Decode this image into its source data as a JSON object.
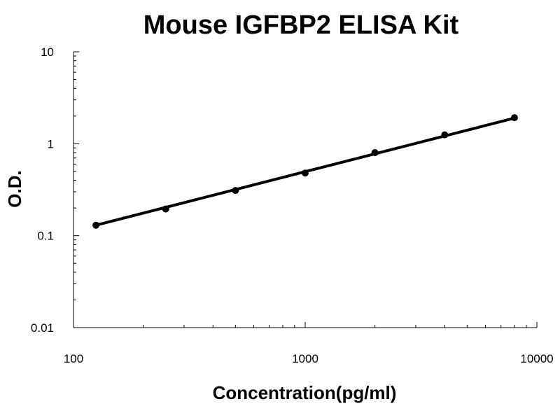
{
  "chart_data": {
    "type": "line",
    "title": "Mouse IGFBP2 ELISA Kit",
    "xlabel": "Concentration(pg/ml)",
    "ylabel": "O.D.",
    "x_scale": "log",
    "y_scale": "log",
    "xlim": [
      100,
      10000
    ],
    "ylim": [
      0.01,
      10
    ],
    "x_ticks": [
      "100",
      "1000",
      "10000"
    ],
    "y_ticks": [
      "0.01",
      "0.1",
      "1",
      "10"
    ],
    "grid": false,
    "legend": "none",
    "line_color": "#000000",
    "series": [
      {
        "x": [
          125,
          250,
          500,
          1000,
          2000,
          4000,
          8000
        ],
        "y": [
          0.13,
          0.195,
          0.31,
          0.48,
          0.8,
          1.25,
          1.92
        ]
      }
    ],
    "fit_line": {
      "x": [
        125,
        8000
      ],
      "y": [
        0.13,
        1.9
      ]
    }
  }
}
